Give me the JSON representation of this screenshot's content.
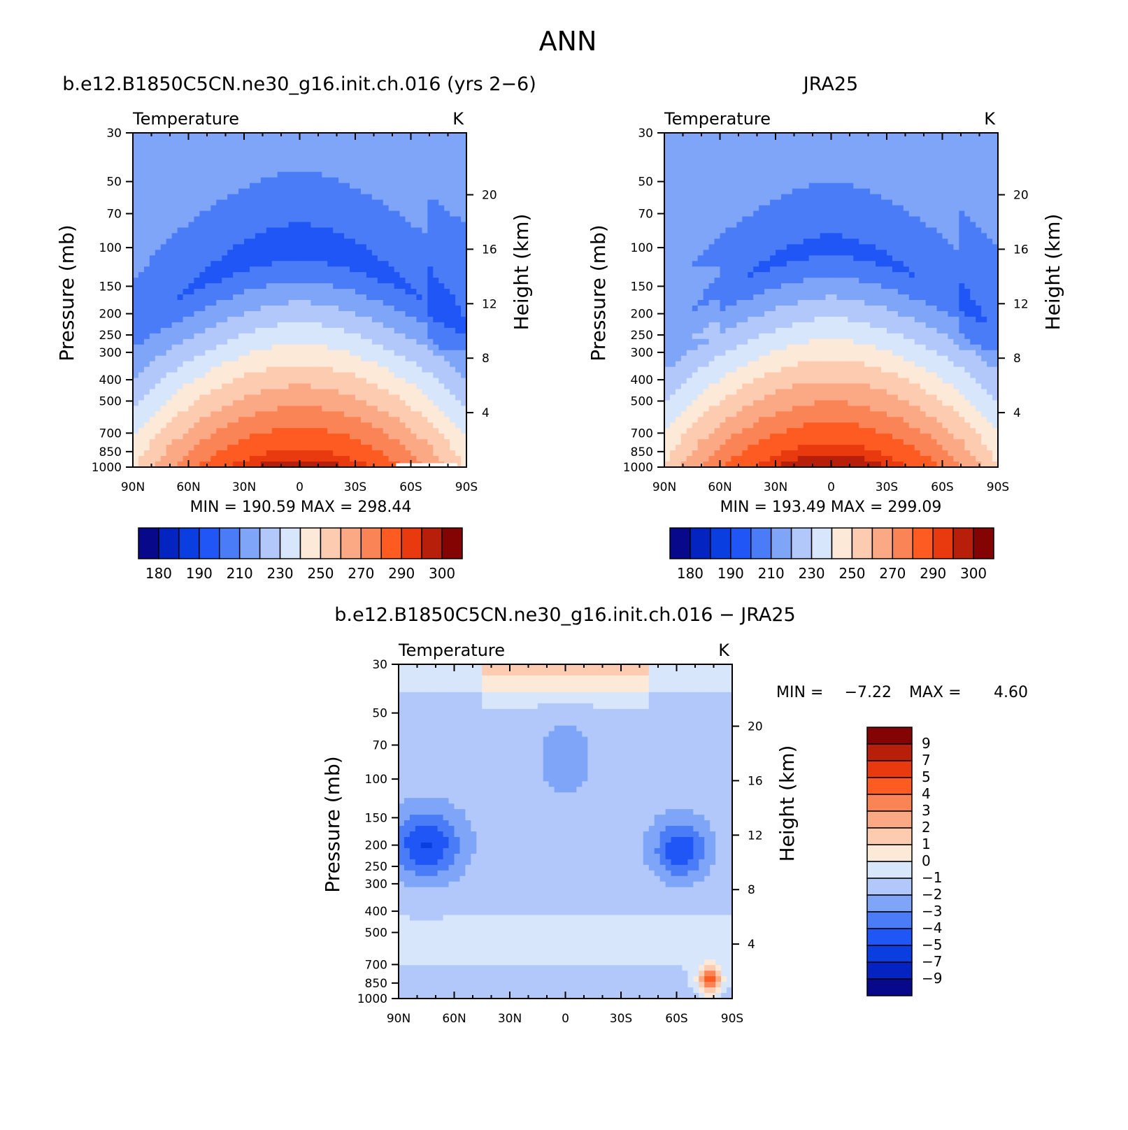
{
  "page_title": "ANN",
  "palette": {
    "temperature": [
      "#08088a",
      "#0424c2",
      "#0b3ee0",
      "#1f56f5",
      "#4a7cf7",
      "#7fa5f8",
      "#b2c8fa",
      "#d8e6fc",
      "#fde9d7",
      "#fccbb0",
      "#fba885",
      "#fb8456",
      "#fd5b22",
      "#e83a0e",
      "#b81f0a",
      "#840404"
    ],
    "difference": [
      "#08088a",
      "#0424c2",
      "#0b3ee0",
      "#1f56f5",
      "#4a7cf7",
      "#7fa5f8",
      "#b2c8fa",
      "#d8e6fc",
      "#fde9d7",
      "#fccbb0",
      "#fba885",
      "#fb8456",
      "#fd5b22",
      "#e83a0e",
      "#b81f0a",
      "#840404"
    ],
    "mask": "#ffffff"
  },
  "chart_data": [
    {
      "id": "model",
      "type": "heatmap",
      "title": "b.e12.B1850C5CN.ne30_g16.init.ch.016 (yrs 2-6)",
      "left_label": "Temperature",
      "units": "K",
      "ylabel": "Pressure (mb)",
      "y2label": "Height (km)",
      "x_ticks": [
        "90N",
        "60N",
        "30N",
        "0",
        "30S",
        "60S",
        "90S"
      ],
      "x_values": [
        90,
        60,
        30,
        0,
        -30,
        -60,
        -90
      ],
      "y_ticks": [
        "30",
        "50",
        "70",
        "100",
        "150",
        "200",
        "250",
        "300",
        "400",
        "500",
        "700",
        "850",
        "1000"
      ],
      "y_values": [
        30,
        50,
        70,
        100,
        150,
        200,
        250,
        300,
        400,
        500,
        700,
        850,
        1000
      ],
      "y2_ticks": [
        "20",
        "16",
        "12",
        "8",
        "4"
      ],
      "y2_values": [
        20,
        16,
        12,
        8,
        4
      ],
      "xlim": [
        90,
        -90
      ],
      "ylim": [
        30,
        1000
      ],
      "levels": [
        175,
        180,
        185,
        190,
        200,
        210,
        220,
        230,
        240,
        250,
        260,
        270,
        280,
        290,
        295,
        300
      ],
      "min": "190.59",
      "max": "298.44",
      "min_text": "MIN =  190.59   MAX =  298.44",
      "colorbar_labels": [
        "180",
        "190",
        "210",
        "230",
        "250",
        "270",
        "290",
        "300"
      ],
      "variant": "model"
    },
    {
      "id": "obs",
      "type": "heatmap",
      "title": "JRA25",
      "left_label": "Temperature",
      "units": "K",
      "ylabel": "Pressure (mb)",
      "y2label": "Height (km)",
      "x_ticks": [
        "90N",
        "60N",
        "30N",
        "0",
        "30S",
        "60S",
        "90S"
      ],
      "x_values": [
        90,
        60,
        30,
        0,
        -30,
        -60,
        -90
      ],
      "y_ticks": [
        "30",
        "50",
        "70",
        "100",
        "150",
        "200",
        "250",
        "300",
        "400",
        "500",
        "700",
        "850",
        "1000"
      ],
      "y_values": [
        30,
        50,
        70,
        100,
        150,
        200,
        250,
        300,
        400,
        500,
        700,
        850,
        1000
      ],
      "y2_ticks": [
        "20",
        "16",
        "12",
        "8",
        "4"
      ],
      "y2_values": [
        20,
        16,
        12,
        8,
        4
      ],
      "xlim": [
        90,
        -90
      ],
      "ylim": [
        30,
        1000
      ],
      "levels": [
        175,
        180,
        185,
        190,
        200,
        210,
        220,
        230,
        240,
        250,
        260,
        270,
        280,
        290,
        295,
        300
      ],
      "min": "193.49",
      "max": "299.09",
      "min_text": "MIN =  193.49   MAX =  299.09",
      "colorbar_labels": [
        "180",
        "190",
        "210",
        "230",
        "250",
        "270",
        "290",
        "300"
      ],
      "variant": "obs"
    },
    {
      "id": "diff",
      "type": "heatmap",
      "title": "b.e12.B1850C5CN.ne30_g16.init.ch.016 - JRA25",
      "left_label": "Temperature",
      "units": "K",
      "ylabel": "Pressure (mb)",
      "y2label": "Height (km)",
      "x_ticks": [
        "90N",
        "60N",
        "30N",
        "0",
        "30S",
        "60S",
        "90S"
      ],
      "x_values": [
        90,
        60,
        30,
        0,
        -30,
        -60,
        -90
      ],
      "y_ticks": [
        "30",
        "50",
        "70",
        "100",
        "150",
        "200",
        "250",
        "300",
        "400",
        "500",
        "700",
        "850",
        "1000"
      ],
      "y_values": [
        30,
        50,
        70,
        100,
        150,
        200,
        250,
        300,
        400,
        500,
        700,
        850,
        1000
      ],
      "y2_ticks": [
        "20",
        "16",
        "12",
        "8",
        "4"
      ],
      "y2_values": [
        20,
        16,
        12,
        8,
        4
      ],
      "xlim": [
        90,
        -90
      ],
      "ylim": [
        30,
        1000
      ],
      "levels": [
        -10,
        -9,
        -7,
        -5,
        -4,
        -3,
        -2,
        -1,
        0,
        1,
        2,
        3,
        4,
        5,
        7,
        9
      ],
      "min": "-7.22",
      "max": "4.60",
      "min_label": "MIN =",
      "min_value": "-7.22",
      "max_label": "MAX =",
      "max_value": "4.60",
      "colorbar_labels": [
        "9",
        "7",
        "5",
        "4",
        "3",
        "2",
        "1",
        "0",
        "-1",
        "-2",
        "-3",
        "-4",
        "-5",
        "-7",
        "-9"
      ],
      "variant": "diff"
    }
  ]
}
